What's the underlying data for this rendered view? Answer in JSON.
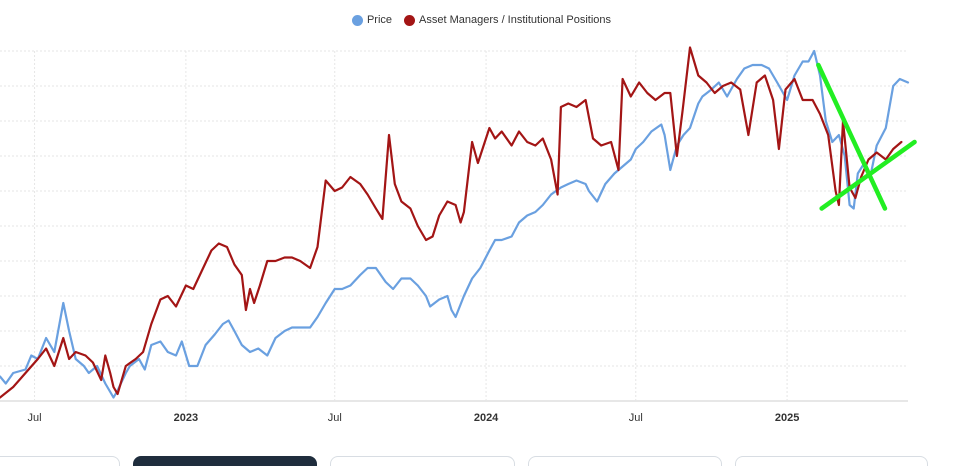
{
  "chart_data": {
    "type": "line",
    "x_axis_type": "date",
    "xlim": [
      "2022-05-20",
      "2025-05-28"
    ],
    "ylim": [
      0,
      100
    ],
    "grid": "horizontal",
    "legend_position": "top-center",
    "x_ticks": [
      {
        "date": "2022-07-01",
        "label": "Jul",
        "bold": false
      },
      {
        "date": "2023-01-01",
        "label": "2023",
        "bold": true
      },
      {
        "date": "2023-07-01",
        "label": "Jul",
        "bold": false
      },
      {
        "date": "2024-01-01",
        "label": "2024",
        "bold": true
      },
      {
        "date": "2024-07-01",
        "label": "Jul",
        "bold": false
      },
      {
        "date": "2025-01-01",
        "label": "2025",
        "bold": true
      }
    ],
    "series": [
      {
        "name": "Price",
        "color": "#6aa0e0",
        "points": [
          [
            "2022-05-20",
            7
          ],
          [
            "2022-05-27",
            5
          ],
          [
            "2022-06-05",
            8
          ],
          [
            "2022-06-20",
            9
          ],
          [
            "2022-06-27",
            13
          ],
          [
            "2022-07-05",
            12
          ],
          [
            "2022-07-15",
            18
          ],
          [
            "2022-07-25",
            14
          ],
          [
            "2022-08-05",
            28
          ],
          [
            "2022-08-12",
            20
          ],
          [
            "2022-08-20",
            12
          ],
          [
            "2022-08-30",
            10
          ],
          [
            "2022-09-05",
            8
          ],
          [
            "2022-09-15",
            10
          ],
          [
            "2022-09-25",
            5
          ],
          [
            "2022-10-05",
            1
          ],
          [
            "2022-10-10",
            3
          ],
          [
            "2022-10-20",
            8
          ],
          [
            "2022-10-25",
            10
          ],
          [
            "2022-11-05",
            12
          ],
          [
            "2022-11-12",
            9
          ],
          [
            "2022-11-20",
            16
          ],
          [
            "2022-12-01",
            17
          ],
          [
            "2022-12-10",
            14
          ],
          [
            "2022-12-20",
            13
          ],
          [
            "2022-12-27",
            17
          ],
          [
            "2023-01-05",
            10
          ],
          [
            "2023-01-15",
            10
          ],
          [
            "2023-01-25",
            16
          ],
          [
            "2023-02-05",
            19
          ],
          [
            "2023-02-15",
            22
          ],
          [
            "2023-02-22",
            23
          ],
          [
            "2023-03-01",
            20
          ],
          [
            "2023-03-10",
            16
          ],
          [
            "2023-03-20",
            14
          ],
          [
            "2023-03-30",
            15
          ],
          [
            "2023-04-10",
            13
          ],
          [
            "2023-04-20",
            18
          ],
          [
            "2023-05-01",
            20
          ],
          [
            "2023-05-10",
            21
          ],
          [
            "2023-05-20",
            21
          ],
          [
            "2023-06-01",
            21
          ],
          [
            "2023-06-10",
            24
          ],
          [
            "2023-06-20",
            28
          ],
          [
            "2023-07-01",
            32
          ],
          [
            "2023-07-10",
            32
          ],
          [
            "2023-07-20",
            33
          ],
          [
            "2023-08-01",
            36
          ],
          [
            "2023-08-10",
            38
          ],
          [
            "2023-08-20",
            38
          ],
          [
            "2023-09-01",
            34
          ],
          [
            "2023-09-10",
            32
          ],
          [
            "2023-09-20",
            35
          ],
          [
            "2023-10-01",
            35
          ],
          [
            "2023-10-10",
            33
          ],
          [
            "2023-10-20",
            30
          ],
          [
            "2023-10-25",
            27
          ],
          [
            "2023-11-05",
            29
          ],
          [
            "2023-11-15",
            30
          ],
          [
            "2023-11-20",
            26
          ],
          [
            "2023-11-25",
            24
          ],
          [
            "2023-12-05",
            30
          ],
          [
            "2023-12-15",
            35
          ],
          [
            "2023-12-25",
            38
          ],
          [
            "2024-01-05",
            43
          ],
          [
            "2024-01-12",
            46
          ],
          [
            "2024-01-20",
            46
          ],
          [
            "2024-02-01",
            47
          ],
          [
            "2024-02-10",
            51
          ],
          [
            "2024-02-20",
            53
          ],
          [
            "2024-03-01",
            54
          ],
          [
            "2024-03-10",
            56
          ],
          [
            "2024-03-20",
            59
          ],
          [
            "2024-04-01",
            61
          ],
          [
            "2024-04-10",
            62
          ],
          [
            "2024-04-20",
            63
          ],
          [
            "2024-05-01",
            62
          ],
          [
            "2024-05-05",
            60
          ],
          [
            "2024-05-15",
            57
          ],
          [
            "2024-05-25",
            62
          ],
          [
            "2024-06-05",
            65
          ],
          [
            "2024-06-15",
            67
          ],
          [
            "2024-06-25",
            69
          ],
          [
            "2024-07-01",
            72
          ],
          [
            "2024-07-10",
            74
          ],
          [
            "2024-07-20",
            77
          ],
          [
            "2024-08-01",
            79
          ],
          [
            "2024-08-05",
            76
          ],
          [
            "2024-08-12",
            66
          ],
          [
            "2024-08-20",
            73
          ],
          [
            "2024-08-28",
            76
          ],
          [
            "2024-09-05",
            78
          ],
          [
            "2024-09-15",
            85
          ],
          [
            "2024-09-20",
            87
          ],
          [
            "2024-10-01",
            89
          ],
          [
            "2024-10-10",
            91
          ],
          [
            "2024-10-20",
            87
          ],
          [
            "2024-11-01",
            92
          ],
          [
            "2024-11-10",
            95
          ],
          [
            "2024-11-20",
            96
          ],
          [
            "2024-12-01",
            96
          ],
          [
            "2024-12-10",
            95
          ],
          [
            "2024-12-20",
            91
          ],
          [
            "2025-01-01",
            86
          ],
          [
            "2025-01-10",
            93
          ],
          [
            "2025-01-20",
            97
          ],
          [
            "2025-01-27",
            97
          ],
          [
            "2025-02-03",
            100
          ],
          [
            "2025-02-10",
            93
          ],
          [
            "2025-02-17",
            80
          ],
          [
            "2025-02-25",
            74
          ],
          [
            "2025-03-05",
            76
          ],
          [
            "2025-03-12",
            70
          ],
          [
            "2025-03-18",
            56
          ],
          [
            "2025-03-23",
            55
          ],
          [
            "2025-03-28",
            65
          ],
          [
            "2025-04-05",
            68
          ],
          [
            "2025-04-12",
            64
          ],
          [
            "2025-04-20",
            73
          ],
          [
            "2025-05-01",
            78
          ],
          [
            "2025-05-10",
            90
          ],
          [
            "2025-05-18",
            92
          ],
          [
            "2025-05-28",
            91
          ]
        ]
      },
      {
        "name": "Asset Managers / Institutional Positions",
        "color": "#a31515",
        "points": [
          [
            "2022-05-20",
            1
          ],
          [
            "2022-06-05",
            4
          ],
          [
            "2022-06-20",
            8
          ],
          [
            "2022-07-05",
            12
          ],
          [
            "2022-07-15",
            15
          ],
          [
            "2022-07-25",
            10
          ],
          [
            "2022-08-05",
            18
          ],
          [
            "2022-08-12",
            12
          ],
          [
            "2022-08-20",
            14
          ],
          [
            "2022-09-01",
            13
          ],
          [
            "2022-09-10",
            11
          ],
          [
            "2022-09-20",
            6
          ],
          [
            "2022-09-25",
            13
          ],
          [
            "2022-10-01",
            8
          ],
          [
            "2022-10-05",
            4
          ],
          [
            "2022-10-10",
            2
          ],
          [
            "2022-10-20",
            10
          ],
          [
            "2022-11-01",
            12
          ],
          [
            "2022-11-10",
            14
          ],
          [
            "2022-11-20",
            22
          ],
          [
            "2022-12-01",
            29
          ],
          [
            "2022-12-10",
            30
          ],
          [
            "2022-12-20",
            27
          ],
          [
            "2023-01-01",
            33
          ],
          [
            "2023-01-10",
            32
          ],
          [
            "2023-01-20",
            37
          ],
          [
            "2023-02-01",
            43
          ],
          [
            "2023-02-10",
            45
          ],
          [
            "2023-02-20",
            44
          ],
          [
            "2023-03-01",
            39
          ],
          [
            "2023-03-10",
            36
          ],
          [
            "2023-03-15",
            26
          ],
          [
            "2023-03-20",
            32
          ],
          [
            "2023-03-25",
            28
          ],
          [
            "2023-04-01",
            33
          ],
          [
            "2023-04-10",
            40
          ],
          [
            "2023-04-20",
            40
          ],
          [
            "2023-05-01",
            41
          ],
          [
            "2023-05-10",
            41
          ],
          [
            "2023-05-20",
            40
          ],
          [
            "2023-06-01",
            38
          ],
          [
            "2023-06-10",
            44
          ],
          [
            "2023-06-20",
            63
          ],
          [
            "2023-07-01",
            60
          ],
          [
            "2023-07-10",
            61
          ],
          [
            "2023-07-20",
            64
          ],
          [
            "2023-08-01",
            62
          ],
          [
            "2023-08-10",
            59
          ],
          [
            "2023-08-20",
            55
          ],
          [
            "2023-08-28",
            52
          ],
          [
            "2023-09-05",
            76
          ],
          [
            "2023-09-12",
            62
          ],
          [
            "2023-09-20",
            57
          ],
          [
            "2023-10-01",
            55
          ],
          [
            "2023-10-10",
            50
          ],
          [
            "2023-10-20",
            46
          ],
          [
            "2023-10-28",
            47
          ],
          [
            "2023-11-05",
            53
          ],
          [
            "2023-11-15",
            57
          ],
          [
            "2023-11-25",
            56
          ],
          [
            "2023-12-01",
            51
          ],
          [
            "2023-12-05",
            54
          ],
          [
            "2023-12-15",
            74
          ],
          [
            "2023-12-22",
            68
          ],
          [
            "2024-01-05",
            78
          ],
          [
            "2024-01-12",
            75
          ],
          [
            "2024-01-20",
            77
          ],
          [
            "2024-02-01",
            73
          ],
          [
            "2024-02-10",
            77
          ],
          [
            "2024-02-20",
            74
          ],
          [
            "2024-03-01",
            73
          ],
          [
            "2024-03-10",
            75
          ],
          [
            "2024-03-20",
            69
          ],
          [
            "2024-03-28",
            59
          ],
          [
            "2024-04-01",
            84
          ],
          [
            "2024-04-10",
            85
          ],
          [
            "2024-04-20",
            84
          ],
          [
            "2024-05-01",
            86
          ],
          [
            "2024-05-10",
            75
          ],
          [
            "2024-05-20",
            73
          ],
          [
            "2024-06-01",
            74
          ],
          [
            "2024-06-10",
            66
          ],
          [
            "2024-06-15",
            92
          ],
          [
            "2024-06-25",
            87
          ],
          [
            "2024-07-05",
            91
          ],
          [
            "2024-07-15",
            88
          ],
          [
            "2024-07-25",
            86
          ],
          [
            "2024-08-05",
            88
          ],
          [
            "2024-08-12",
            88
          ],
          [
            "2024-08-20",
            70
          ],
          [
            "2024-08-27",
            83
          ],
          [
            "2024-09-05",
            101
          ],
          [
            "2024-09-15",
            93
          ],
          [
            "2024-09-25",
            91
          ],
          [
            "2024-10-05",
            88
          ],
          [
            "2024-10-15",
            90
          ],
          [
            "2024-10-25",
            91
          ],
          [
            "2024-11-05",
            89
          ],
          [
            "2024-11-15",
            76
          ],
          [
            "2024-11-25",
            91
          ],
          [
            "2024-12-05",
            93
          ],
          [
            "2024-12-15",
            86
          ],
          [
            "2024-12-22",
            72
          ],
          [
            "2024-12-30",
            89
          ],
          [
            "2025-01-10",
            92
          ],
          [
            "2025-01-20",
            86
          ],
          [
            "2025-02-01",
            86
          ],
          [
            "2025-02-10",
            82
          ],
          [
            "2025-02-20",
            76
          ],
          [
            "2025-03-01",
            60
          ],
          [
            "2025-03-05",
            56
          ],
          [
            "2025-03-10",
            80
          ],
          [
            "2025-03-18",
            61
          ],
          [
            "2025-03-25",
            58
          ],
          [
            "2025-04-01",
            64
          ],
          [
            "2025-04-10",
            69
          ],
          [
            "2025-04-20",
            71
          ],
          [
            "2025-05-01",
            69
          ],
          [
            "2025-05-10",
            72
          ],
          [
            "2025-05-20",
            74
          ]
        ]
      }
    ],
    "annotations": [
      {
        "type": "trendline",
        "color": "#22ee22",
        "from": [
          "2025-02-08",
          96
        ],
        "to": [
          "2025-04-30",
          55
        ]
      },
      {
        "type": "trendline",
        "color": "#22ee22",
        "from": [
          "2025-02-12",
          55
        ],
        "to": [
          "2025-06-05",
          74
        ]
      }
    ]
  }
}
